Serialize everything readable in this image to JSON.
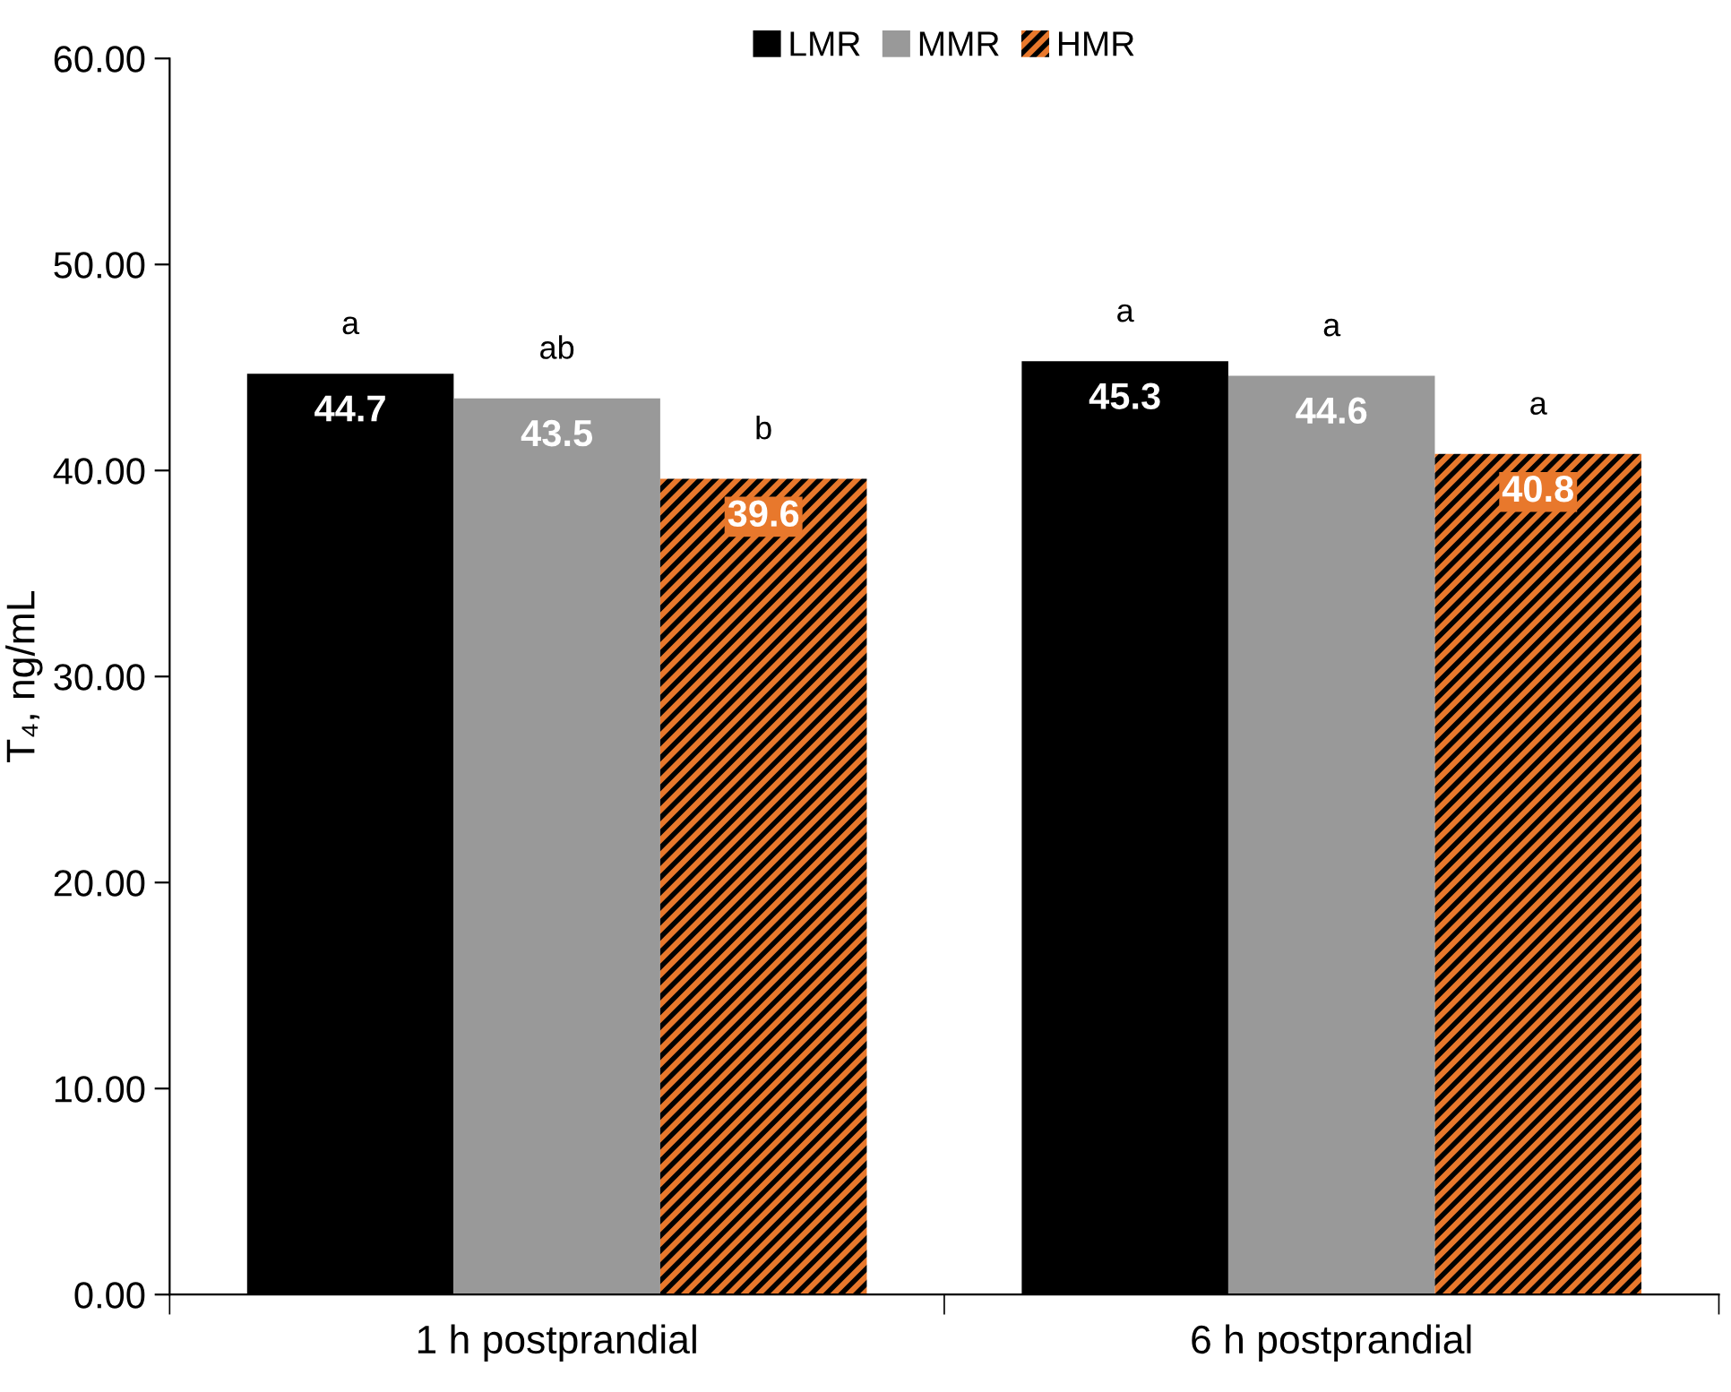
{
  "chart_data": {
    "type": "bar",
    "ylabel": "T₄, ng/mL",
    "categories": [
      "1 h postprandial",
      "6 h postprandial"
    ],
    "series": [
      {
        "name": "LMR",
        "color": "#000000",
        "values": [
          44.7,
          45.3
        ]
      },
      {
        "name": "MMR",
        "color": "#999999",
        "values": [
          43.5,
          44.6
        ]
      },
      {
        "name": "HMR",
        "color": "#e8782c",
        "values": [
          39.6,
          40.8
        ]
      }
    ],
    "data_labels": true,
    "ylim": [
      0,
      60
    ],
    "yticks": [
      {
        "value": 0,
        "label": "0.00"
      },
      {
        "value": 10,
        "label": "10.00"
      },
      {
        "value": 20,
        "label": "20.00"
      },
      {
        "value": 30,
        "label": "30.00"
      },
      {
        "value": 40,
        "label": "40.00"
      },
      {
        "value": 50,
        "label": "50.00"
      },
      {
        "value": 60,
        "label": "60.00"
      }
    ],
    "annotations": [
      "a",
      "ab",
      "b",
      "a",
      "a",
      "a"
    ],
    "legend": "top",
    "grid": false
  }
}
